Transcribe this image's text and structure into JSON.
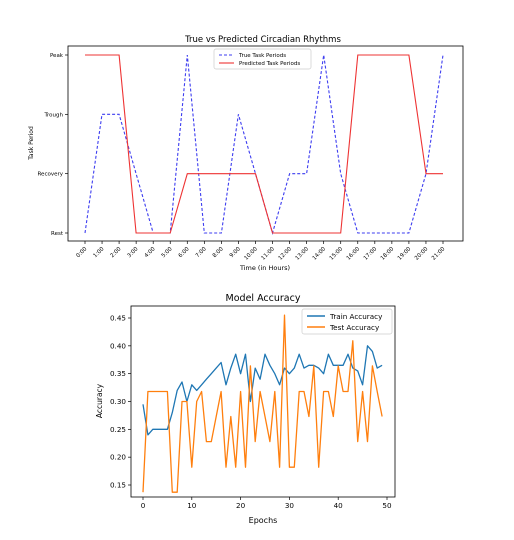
{
  "chart_data": [
    {
      "type": "line",
      "title": "True vs Predicted Circadian Rhythms",
      "xlabel": "Time (in Hours)",
      "ylabel": "Task Period",
      "x": [
        "0:00",
        "1:00",
        "2:00",
        "3:00",
        "4:00",
        "5:00",
        "6:00",
        "7:00",
        "8:00",
        "9:00",
        "10:00",
        "11:00",
        "12:00",
        "13:00",
        "14:00",
        "15:00",
        "16:00",
        "17:00",
        "18:00",
        "19:00",
        "20:00",
        "21:00"
      ],
      "yticks": [
        "Rest",
        "Recovery",
        "Trough",
        "Peak"
      ],
      "legend_position": "top-center",
      "series": [
        {
          "name": "True Task Periods",
          "style": "dashed",
          "color": "#3d3df0",
          "values": [
            "Rest",
            "Trough",
            "Trough",
            "Recovery",
            "Rest",
            "Rest",
            "Peak",
            "Rest",
            "Rest",
            "Trough",
            "Recovery",
            "Rest",
            "Recovery",
            "Recovery",
            "Peak",
            "Recovery",
            "Rest",
            "Rest",
            "Rest",
            "Rest",
            "Recovery",
            "Peak"
          ]
        },
        {
          "name": "Predicted Task Periods",
          "style": "solid",
          "color": "#ee3333",
          "values": [
            "Peak",
            "Peak",
            "Peak",
            "Rest",
            "Rest",
            "Rest",
            "Recovery",
            "Recovery",
            "Recovery",
            "Recovery",
            "Recovery",
            "Rest",
            "Rest",
            "Rest",
            "Rest",
            "Rest",
            "Peak",
            "Peak",
            "Peak",
            "Peak",
            "Recovery",
            "Recovery"
          ]
        }
      ],
      "grid": false
    },
    {
      "type": "line",
      "title": "Model Accuracy",
      "xlabel": "Epochs",
      "ylabel": "Accuracy",
      "xlim": [
        0,
        49
      ],
      "ylim": [
        0.12,
        0.46
      ],
      "xticks": [
        0,
        10,
        20,
        30,
        40,
        50
      ],
      "yticks": [
        0.15,
        0.2,
        0.25,
        0.3,
        0.35,
        0.4,
        0.45
      ],
      "legend_position": "top-right",
      "grid": false,
      "series": [
        {
          "name": "Train Accuracy",
          "color": "#1f77b4",
          "values": [
            0.295,
            0.24,
            0.25,
            0.25,
            0.25,
            0.25,
            0.28,
            0.32,
            0.335,
            0.3,
            0.33,
            0.32,
            0.33,
            0.34,
            0.35,
            0.36,
            0.37,
            0.33,
            0.36,
            0.385,
            0.35,
            0.385,
            0.3,
            0.36,
            0.34,
            0.385,
            0.365,
            0.35,
            0.33,
            0.36,
            0.35,
            0.36,
            0.385,
            0.36,
            0.365,
            0.365,
            0.36,
            0.35,
            0.385,
            0.365,
            0.365,
            0.365,
            0.385,
            0.36,
            0.355,
            0.33,
            0.4,
            0.39,
            0.36,
            0.365
          ]
        },
        {
          "name": "Test Accuracy",
          "color": "#ff7f0e",
          "values": [
            0.137,
            0.318,
            0.318,
            0.318,
            0.318,
            0.318,
            0.137,
            0.137,
            0.3,
            0.3,
            0.182,
            0.3,
            0.318,
            0.228,
            0.228,
            0.273,
            0.318,
            0.182,
            0.273,
            0.182,
            0.318,
            0.182,
            0.364,
            0.228,
            0.318,
            0.273,
            0.228,
            0.318,
            0.182,
            0.455,
            0.182,
            0.182,
            0.318,
            0.318,
            0.273,
            0.364,
            0.182,
            0.318,
            0.318,
            0.273,
            0.364,
            0.318,
            0.318,
            0.409,
            0.228,
            0.318,
            0.228,
            0.364,
            0.318,
            0.273
          ]
        }
      ]
    }
  ]
}
